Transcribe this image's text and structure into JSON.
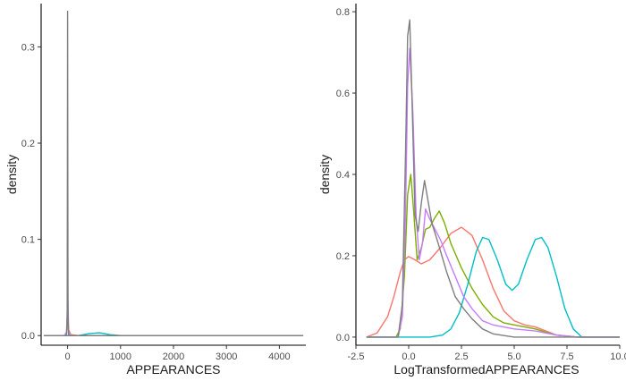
{
  "chart_data": [
    {
      "type": "line",
      "subtype": "density",
      "xlabel": "APPEARANCES",
      "ylabel": "density",
      "xlim": [
        -500,
        4500
      ],
      "ylim": [
        -0.01,
        0.345
      ],
      "x_ticks": [
        0,
        1000,
        2000,
        3000,
        4000
      ],
      "x_tick_labels": [
        "0",
        "1000",
        "2000",
        "3000",
        "4000"
      ],
      "y_ticks": [
        0.0,
        0.1,
        0.2,
        0.3
      ],
      "y_tick_labels": [
        "0.0",
        "0.1",
        "0.2",
        "0.3"
      ],
      "grid": false,
      "legend": "none",
      "series": [
        {
          "name": "red",
          "color": "#F8766D",
          "x": [
            -450,
            -60,
            -20,
            0,
            5,
            20,
            60,
            200,
            4450
          ],
          "y": [
            0,
            0,
            0.002,
            0.01,
            0.012,
            0.006,
            0.001,
            0,
            0
          ]
        },
        {
          "name": "green",
          "color": "#7CAE00",
          "x": [
            -450,
            -60,
            -20,
            -5,
            0,
            5,
            20,
            60,
            200,
            4450
          ],
          "y": [
            0,
            0,
            0.003,
            0.02,
            0.03,
            0.02,
            0.003,
            0,
            0,
            0
          ]
        },
        {
          "name": "cyan",
          "color": "#00BFC4",
          "x": [
            -450,
            200,
            300,
            400,
            500,
            600,
            700,
            800,
            1000,
            4450
          ],
          "y": [
            0,
            0,
            0.001,
            0.002,
            0.0025,
            0.003,
            0.002,
            0.001,
            0,
            0
          ]
        },
        {
          "name": "purple",
          "color": "#C77CFF",
          "x": [
            -450,
            -60,
            -20,
            -5,
            0,
            5,
            20,
            60,
            200,
            4450
          ],
          "y": [
            0,
            0,
            0.004,
            0.03,
            0.06,
            0.04,
            0.004,
            0,
            0,
            0
          ]
        },
        {
          "name": "grey",
          "color": "#7F7F7F",
          "x": [
            -450,
            -20,
            -8,
            -3,
            0,
            3,
            8,
            20,
            4450
          ],
          "y": [
            0,
            0,
            0.02,
            0.2,
            0.337,
            0.2,
            0.02,
            0,
            0
          ]
        }
      ]
    },
    {
      "type": "line",
      "subtype": "density",
      "xlabel": "LogTransformedAPPEARANCES",
      "ylabel": "density",
      "xlim": [
        -2.5,
        10.0
      ],
      "ylim": [
        -0.02,
        0.82
      ],
      "x_ticks": [
        -2.5,
        0.0,
        2.5,
        5.0,
        7.5,
        10.0
      ],
      "x_tick_labels": [
        "-2.5",
        "0.0",
        "2.5",
        "5.0",
        "7.5",
        "10.0"
      ],
      "y_ticks": [
        0.0,
        0.2,
        0.4,
        0.6,
        0.8
      ],
      "y_tick_labels": [
        "0.0",
        "0.2",
        "0.4",
        "0.6",
        "0.8"
      ],
      "grid": false,
      "legend": "none",
      "series": [
        {
          "name": "red",
          "color": "#F8766D",
          "x": [
            -2.0,
            -1.5,
            -1.0,
            -0.7,
            -0.4,
            -0.2,
            0.0,
            0.3,
            0.6,
            1.0,
            1.5,
            2.0,
            2.5,
            3.0,
            3.5,
            4.0,
            4.5,
            5.0,
            5.5,
            6.0,
            6.5,
            7.0,
            8.0,
            10.0
          ],
          "y": [
            0.0,
            0.01,
            0.05,
            0.1,
            0.16,
            0.19,
            0.198,
            0.19,
            0.18,
            0.19,
            0.22,
            0.255,
            0.27,
            0.25,
            0.19,
            0.12,
            0.065,
            0.04,
            0.03,
            0.025,
            0.015,
            0.005,
            0.0,
            0.0
          ]
        },
        {
          "name": "green",
          "color": "#7CAE00",
          "x": [
            -2.0,
            -0.6,
            -0.4,
            -0.2,
            -0.05,
            0.1,
            0.25,
            0.4,
            0.6,
            0.8,
            1.0,
            1.2,
            1.45,
            1.7,
            2.0,
            2.5,
            3.0,
            3.5,
            4.0,
            4.5,
            5.0,
            5.5,
            6.0,
            6.5,
            7.0,
            8.0,
            10.0
          ],
          "y": [
            0.0,
            0.0,
            0.02,
            0.15,
            0.35,
            0.4,
            0.3,
            0.19,
            0.22,
            0.265,
            0.27,
            0.29,
            0.31,
            0.28,
            0.23,
            0.17,
            0.12,
            0.08,
            0.05,
            0.035,
            0.03,
            0.025,
            0.02,
            0.012,
            0.005,
            0.0,
            0.0
          ]
        },
        {
          "name": "cyan",
          "color": "#00BFC4",
          "x": [
            -2.0,
            1.0,
            1.6,
            2.0,
            2.4,
            2.8,
            3.2,
            3.5,
            3.8,
            4.2,
            4.6,
            4.9,
            5.2,
            5.6,
            6.0,
            6.3,
            6.6,
            7.0,
            7.4,
            7.8,
            8.2,
            10.0
          ],
          "y": [
            0.0,
            0.0,
            0.005,
            0.02,
            0.06,
            0.13,
            0.21,
            0.245,
            0.24,
            0.19,
            0.13,
            0.115,
            0.13,
            0.19,
            0.24,
            0.245,
            0.22,
            0.15,
            0.07,
            0.02,
            0.0,
            0.0
          ]
        },
        {
          "name": "purple",
          "color": "#C77CFF",
          "x": [
            -2.0,
            -0.5,
            -0.3,
            -0.15,
            -0.05,
            0.05,
            0.2,
            0.35,
            0.5,
            0.65,
            0.8,
            1.0,
            1.2,
            1.5,
            1.8,
            2.2,
            2.6,
            3.0,
            3.5,
            4.0,
            5.0,
            6.0,
            7.0,
            8.0,
            10.0
          ],
          "y": [
            0.0,
            0.0,
            0.05,
            0.3,
            0.62,
            0.71,
            0.55,
            0.3,
            0.19,
            0.23,
            0.315,
            0.29,
            0.27,
            0.24,
            0.2,
            0.15,
            0.1,
            0.07,
            0.04,
            0.03,
            0.02,
            0.015,
            0.005,
            0.0,
            0.0
          ]
        },
        {
          "name": "grey",
          "color": "#7F7F7F",
          "x": [
            -2.0,
            -0.5,
            -0.3,
            -0.15,
            -0.05,
            0.05,
            0.15,
            0.3,
            0.45,
            0.6,
            0.75,
            0.9,
            1.1,
            1.4,
            1.8,
            2.2,
            2.6,
            3.0,
            3.5,
            4.0,
            5.0,
            6.0,
            10.0
          ],
          "y": [
            0.0,
            0.0,
            0.08,
            0.45,
            0.74,
            0.78,
            0.6,
            0.3,
            0.26,
            0.33,
            0.385,
            0.34,
            0.28,
            0.23,
            0.16,
            0.1,
            0.07,
            0.045,
            0.02,
            0.008,
            0.0,
            0.0,
            0.0
          ]
        }
      ]
    }
  ]
}
